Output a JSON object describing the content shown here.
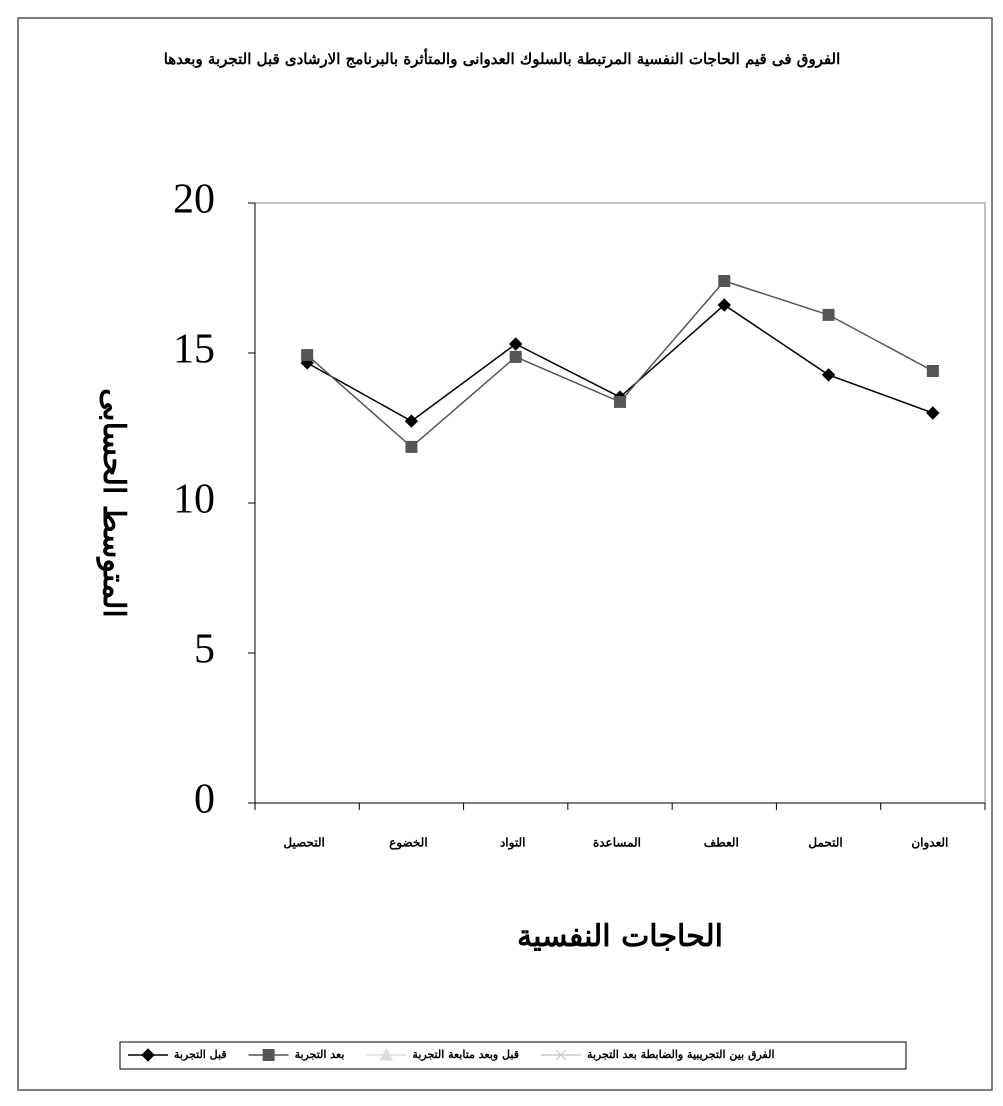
{
  "chart_data": {
    "type": "line",
    "title": "الفروق فى قيم الحاجات النفسية المرتبطة بالسلوك العدوانى والمتأثرة بالبرنامج الارشادى قبل التجربة وبعدها",
    "y_label": "المتوسط الحسابى",
    "x_label": "الحاجات النفسية",
    "categories": [
      "التحصيل",
      "الخضوع",
      "التواد",
      "المساعدة",
      "العطف",
      "التحمل",
      "العدوان"
    ],
    "series": [
      {
        "name": "قبل التجربة",
        "color": "#000000",
        "marker": "diamond",
        "values": [
          14.67,
          12.73,
          15.3,
          13.53,
          16.6,
          14.27,
          13.0
        ]
      },
      {
        "name": "بعد التجربة",
        "color": "#555555",
        "marker": "square",
        "values": [
          14.93,
          11.87,
          14.87,
          13.37,
          17.4,
          16.27,
          14.4
        ]
      },
      {
        "name": "قبل وبعد متابعة التجربة",
        "color": "#dddddd",
        "marker": "triangle",
        "values": [
          null,
          null,
          null,
          null,
          null,
          null,
          null
        ]
      },
      {
        "name": "الفرق بين التجريبية والضابطة بعد التجربة",
        "color": "#cccccc",
        "marker": "x",
        "values": [
          null,
          null,
          null,
          null,
          null,
          null,
          null
        ]
      }
    ],
    "ylim": [
      0,
      20
    ],
    "yticks": [
      0,
      5,
      10,
      15,
      20
    ]
  }
}
